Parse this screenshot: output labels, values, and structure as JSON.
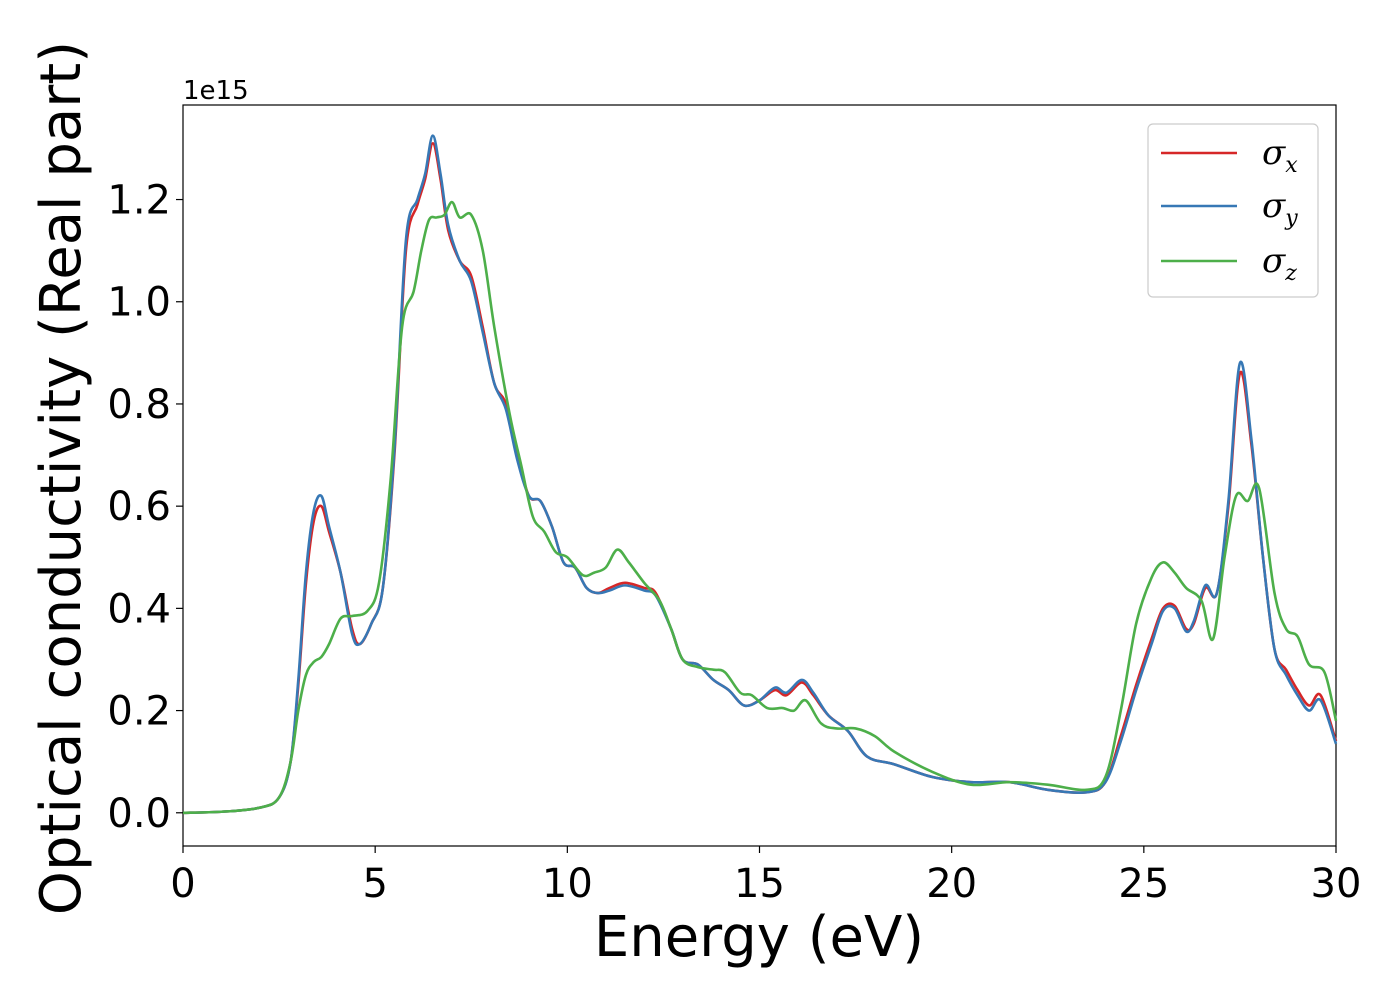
{
  "chart_data": {
    "type": "line",
    "title": "",
    "xlabel": "Energy (eV)",
    "ylabel": "Optical conductivity (Real part)",
    "y_offset_text": "1e15",
    "xlim": [
      0,
      30
    ],
    "ylim": [
      -0.065,
      1.385
    ],
    "y_multiplier": 1000000000000000.0,
    "xticks": [
      0,
      5,
      10,
      15,
      20,
      25,
      30
    ],
    "xtick_labels": [
      "0",
      "5",
      "10",
      "15",
      "20",
      "25",
      "30"
    ],
    "yticks": [
      0.0,
      0.2,
      0.4,
      0.6,
      0.8,
      1.0,
      1.2
    ],
    "ytick_labels": [
      "0.0",
      "0.2",
      "0.4",
      "0.6",
      "0.8",
      "1.0",
      "1.2"
    ],
    "grid": false,
    "legend_position": "top-right",
    "series": [
      {
        "name": "σx",
        "legend_base": "σ",
        "legend_sub": "x",
        "color": "#d62728",
        "points": [
          [
            0,
            0
          ],
          [
            1,
            0.002
          ],
          [
            2,
            0.01
          ],
          [
            2.5,
            0.03
          ],
          [
            2.8,
            0.1
          ],
          [
            3.0,
            0.25
          ],
          [
            3.2,
            0.45
          ],
          [
            3.4,
            0.57
          ],
          [
            3.6,
            0.6
          ],
          [
            3.8,
            0.55
          ],
          [
            4.1,
            0.47
          ],
          [
            4.4,
            0.36
          ],
          [
            4.6,
            0.33
          ],
          [
            4.9,
            0.37
          ],
          [
            5.2,
            0.44
          ],
          [
            5.5,
            0.7
          ],
          [
            5.8,
            1.1
          ],
          [
            6.1,
            1.19
          ],
          [
            6.3,
            1.24
          ],
          [
            6.5,
            1.31
          ],
          [
            6.7,
            1.24
          ],
          [
            6.9,
            1.14
          ],
          [
            7.2,
            1.08
          ],
          [
            7.5,
            1.05
          ],
          [
            7.8,
            0.95
          ],
          [
            8.1,
            0.84
          ],
          [
            8.4,
            0.8
          ],
          [
            8.7,
            0.7
          ],
          [
            9.0,
            0.62
          ],
          [
            9.3,
            0.61
          ],
          [
            9.6,
            0.56
          ],
          [
            9.9,
            0.49
          ],
          [
            10.2,
            0.48
          ],
          [
            10.5,
            0.44
          ],
          [
            10.8,
            0.43
          ],
          [
            11.1,
            0.44
          ],
          [
            11.5,
            0.45
          ],
          [
            12.0,
            0.44
          ],
          [
            12.3,
            0.43
          ],
          [
            12.7,
            0.36
          ],
          [
            13.0,
            0.3
          ],
          [
            13.4,
            0.29
          ],
          [
            13.8,
            0.26
          ],
          [
            14.2,
            0.24
          ],
          [
            14.6,
            0.21
          ],
          [
            15.0,
            0.22
          ],
          [
            15.4,
            0.24
          ],
          [
            15.7,
            0.23
          ],
          [
            16.1,
            0.255
          ],
          [
            16.4,
            0.23
          ],
          [
            16.8,
            0.19
          ],
          [
            17.3,
            0.16
          ],
          [
            17.8,
            0.11
          ],
          [
            18.5,
            0.095
          ],
          [
            19.5,
            0.07
          ],
          [
            20.5,
            0.06
          ],
          [
            21.5,
            0.06
          ],
          [
            22.5,
            0.045
          ],
          [
            23.5,
            0.04
          ],
          [
            24.0,
            0.06
          ],
          [
            24.4,
            0.15
          ],
          [
            24.8,
            0.25
          ],
          [
            25.2,
            0.34
          ],
          [
            25.5,
            0.4
          ],
          [
            25.8,
            0.405
          ],
          [
            26.1,
            0.36
          ],
          [
            26.3,
            0.37
          ],
          [
            26.6,
            0.44
          ],
          [
            26.9,
            0.43
          ],
          [
            27.2,
            0.6
          ],
          [
            27.5,
            0.86
          ],
          [
            27.8,
            0.72
          ],
          [
            28.1,
            0.5
          ],
          [
            28.4,
            0.32
          ],
          [
            28.7,
            0.28
          ],
          [
            29.0,
            0.24
          ],
          [
            29.3,
            0.21
          ],
          [
            29.6,
            0.23
          ],
          [
            30.0,
            0.14
          ]
        ]
      },
      {
        "name": "σy",
        "legend_base": "σ",
        "legend_sub": "y",
        "color": "#3778b5",
        "points": [
          [
            0,
            0
          ],
          [
            1,
            0.002
          ],
          [
            2,
            0.01
          ],
          [
            2.5,
            0.03
          ],
          [
            2.8,
            0.1
          ],
          [
            3.0,
            0.26
          ],
          [
            3.2,
            0.47
          ],
          [
            3.4,
            0.59
          ],
          [
            3.6,
            0.62
          ],
          [
            3.8,
            0.56
          ],
          [
            4.1,
            0.47
          ],
          [
            4.4,
            0.35
          ],
          [
            4.6,
            0.33
          ],
          [
            4.9,
            0.37
          ],
          [
            5.2,
            0.44
          ],
          [
            5.5,
            0.71
          ],
          [
            5.8,
            1.12
          ],
          [
            6.1,
            1.2
          ],
          [
            6.3,
            1.25
          ],
          [
            6.5,
            1.325
          ],
          [
            6.7,
            1.25
          ],
          [
            6.9,
            1.15
          ],
          [
            7.2,
            1.08
          ],
          [
            7.5,
            1.04
          ],
          [
            7.8,
            0.94
          ],
          [
            8.1,
            0.84
          ],
          [
            8.4,
            0.79
          ],
          [
            8.7,
            0.69
          ],
          [
            9.0,
            0.62
          ],
          [
            9.3,
            0.61
          ],
          [
            9.6,
            0.56
          ],
          [
            9.9,
            0.49
          ],
          [
            10.2,
            0.48
          ],
          [
            10.5,
            0.44
          ],
          [
            10.8,
            0.43
          ],
          [
            11.1,
            0.435
          ],
          [
            11.5,
            0.445
          ],
          [
            12.0,
            0.435
          ],
          [
            12.3,
            0.425
          ],
          [
            12.7,
            0.36
          ],
          [
            13.0,
            0.3
          ],
          [
            13.4,
            0.29
          ],
          [
            13.8,
            0.26
          ],
          [
            14.2,
            0.24
          ],
          [
            14.6,
            0.21
          ],
          [
            15.0,
            0.22
          ],
          [
            15.4,
            0.245
          ],
          [
            15.7,
            0.235
          ],
          [
            16.1,
            0.26
          ],
          [
            16.4,
            0.235
          ],
          [
            16.8,
            0.19
          ],
          [
            17.3,
            0.16
          ],
          [
            17.8,
            0.11
          ],
          [
            18.5,
            0.095
          ],
          [
            19.5,
            0.07
          ],
          [
            20.5,
            0.06
          ],
          [
            21.5,
            0.06
          ],
          [
            22.5,
            0.045
          ],
          [
            23.5,
            0.04
          ],
          [
            24.0,
            0.06
          ],
          [
            24.4,
            0.14
          ],
          [
            24.8,
            0.24
          ],
          [
            25.2,
            0.33
          ],
          [
            25.5,
            0.395
          ],
          [
            25.8,
            0.4
          ],
          [
            26.1,
            0.355
          ],
          [
            26.3,
            0.375
          ],
          [
            26.6,
            0.445
          ],
          [
            26.9,
            0.43
          ],
          [
            27.2,
            0.61
          ],
          [
            27.5,
            0.88
          ],
          [
            27.8,
            0.73
          ],
          [
            28.1,
            0.5
          ],
          [
            28.4,
            0.32
          ],
          [
            28.7,
            0.27
          ],
          [
            29.0,
            0.23
          ],
          [
            29.3,
            0.2
          ],
          [
            29.6,
            0.22
          ],
          [
            30.0,
            0.135
          ]
        ]
      },
      {
        "name": "σz",
        "legend_base": "σ",
        "legend_sub": "z",
        "color": "#4daf4a",
        "points": [
          [
            0,
            0
          ],
          [
            1,
            0.002
          ],
          [
            2,
            0.01
          ],
          [
            2.5,
            0.03
          ],
          [
            2.8,
            0.1
          ],
          [
            3.0,
            0.2
          ],
          [
            3.2,
            0.27
          ],
          [
            3.4,
            0.295
          ],
          [
            3.6,
            0.305
          ],
          [
            3.8,
            0.33
          ],
          [
            4.1,
            0.38
          ],
          [
            4.4,
            0.385
          ],
          [
            4.8,
            0.395
          ],
          [
            5.1,
            0.45
          ],
          [
            5.4,
            0.65
          ],
          [
            5.7,
            0.95
          ],
          [
            6.0,
            1.02
          ],
          [
            6.2,
            1.1
          ],
          [
            6.4,
            1.16
          ],
          [
            6.6,
            1.165
          ],
          [
            6.8,
            1.17
          ],
          [
            7.0,
            1.195
          ],
          [
            7.2,
            1.165
          ],
          [
            7.5,
            1.17
          ],
          [
            7.8,
            1.1
          ],
          [
            8.1,
            0.95
          ],
          [
            8.5,
            0.78
          ],
          [
            8.8,
            0.68
          ],
          [
            9.1,
            0.58
          ],
          [
            9.4,
            0.55
          ],
          [
            9.7,
            0.51
          ],
          [
            10.0,
            0.5
          ],
          [
            10.4,
            0.465
          ],
          [
            10.7,
            0.47
          ],
          [
            11.0,
            0.48
          ],
          [
            11.3,
            0.515
          ],
          [
            11.6,
            0.49
          ],
          [
            12.0,
            0.45
          ],
          [
            12.4,
            0.415
          ],
          [
            12.7,
            0.36
          ],
          [
            13.0,
            0.3
          ],
          [
            13.4,
            0.285
          ],
          [
            13.8,
            0.28
          ],
          [
            14.1,
            0.275
          ],
          [
            14.5,
            0.235
          ],
          [
            14.8,
            0.23
          ],
          [
            15.2,
            0.205
          ],
          [
            15.6,
            0.205
          ],
          [
            15.9,
            0.2
          ],
          [
            16.2,
            0.22
          ],
          [
            16.6,
            0.175
          ],
          [
            17.0,
            0.165
          ],
          [
            17.5,
            0.165
          ],
          [
            18.0,
            0.15
          ],
          [
            18.5,
            0.12
          ],
          [
            19.5,
            0.08
          ],
          [
            20.5,
            0.055
          ],
          [
            21.5,
            0.06
          ],
          [
            22.5,
            0.055
          ],
          [
            23.5,
            0.045
          ],
          [
            24.0,
            0.07
          ],
          [
            24.4,
            0.2
          ],
          [
            24.8,
            0.37
          ],
          [
            25.2,
            0.46
          ],
          [
            25.5,
            0.49
          ],
          [
            25.8,
            0.47
          ],
          [
            26.1,
            0.44
          ],
          [
            26.5,
            0.415
          ],
          [
            26.8,
            0.34
          ],
          [
            27.1,
            0.5
          ],
          [
            27.4,
            0.62
          ],
          [
            27.7,
            0.61
          ],
          [
            28.0,
            0.635
          ],
          [
            28.4,
            0.43
          ],
          [
            28.7,
            0.36
          ],
          [
            29.0,
            0.345
          ],
          [
            29.3,
            0.29
          ],
          [
            29.7,
            0.275
          ],
          [
            30.0,
            0.18
          ]
        ]
      }
    ]
  }
}
